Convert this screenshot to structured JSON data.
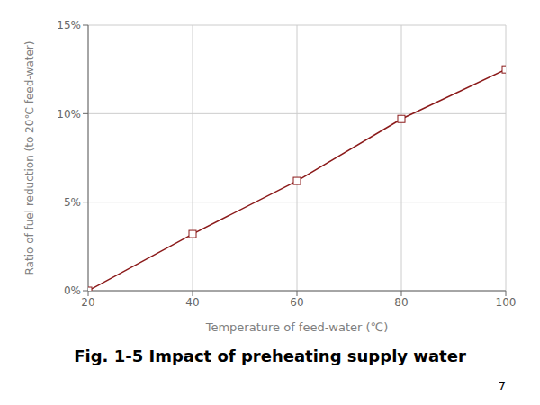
{
  "chart_data": {
    "type": "line",
    "title": "Fig. 1-5 Impact of preheating supply water",
    "xlabel": "Temperature of feed-water (℃)",
    "ylabel": "Ratio of fuel reduction (to 20℃ feed-water)",
    "x": [
      20,
      40,
      60,
      80,
      100
    ],
    "values": [
      0.0,
      0.032,
      0.062,
      0.097,
      0.125
    ],
    "color": "#8B1A1A",
    "marker": "square",
    "xlim": [
      20,
      100
    ],
    "ylim": [
      0,
      0.15
    ],
    "xticks": [
      20,
      40,
      60,
      80,
      100
    ],
    "yticks": [
      {
        "value": 0,
        "label": "0%"
      },
      {
        "value": 0.05,
        "label": "5%"
      },
      {
        "value": 0.1,
        "label": "10%"
      },
      {
        "value": 0.15,
        "label": "15%"
      }
    ],
    "grid": true,
    "annotations": [
      "7"
    ]
  }
}
